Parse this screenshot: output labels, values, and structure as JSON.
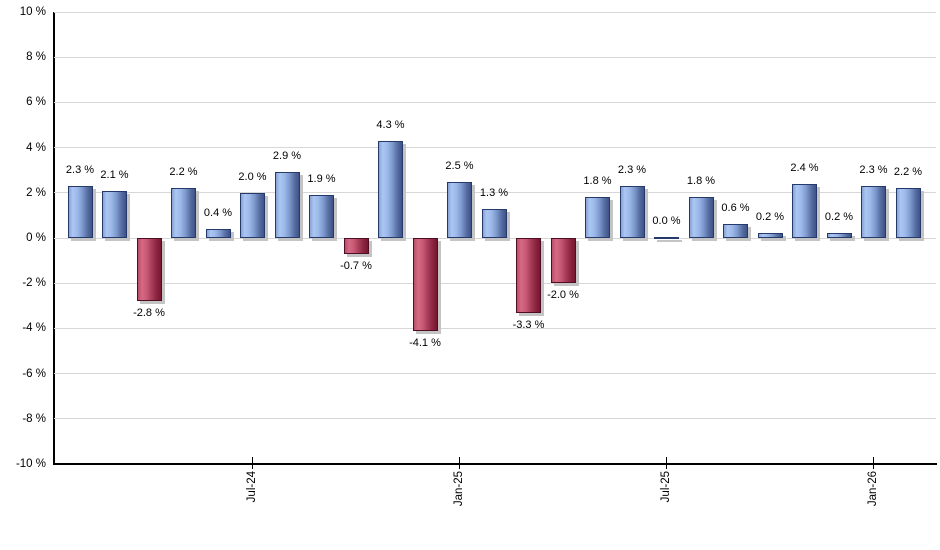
{
  "chart_data": {
    "type": "bar",
    "title": "",
    "xlabel": "",
    "ylabel": "",
    "ylim": [
      -10,
      10
    ],
    "grid": true,
    "legend": null,
    "y_ticks": [
      {
        "label": "10 %",
        "value": 10
      },
      {
        "label": "8 %",
        "value": 8
      },
      {
        "label": "6 %",
        "value": 6
      },
      {
        "label": "4 %",
        "value": 4
      },
      {
        "label": "2 %",
        "value": 2
      },
      {
        "label": "0 %",
        "value": 0
      },
      {
        "label": "-2 %",
        "value": -2
      },
      {
        "label": "-4 %",
        "value": -4
      },
      {
        "label": "-6 %",
        "value": -6
      },
      {
        "label": "-8 %",
        "value": -8
      },
      {
        "label": "-10 %",
        "value": -10
      }
    ],
    "x_ticks": [
      {
        "label": "Jul-24",
        "bar_index": 5
      },
      {
        "label": "Jan-25",
        "bar_index": 11
      },
      {
        "label": "Jul-25",
        "bar_index": 17
      },
      {
        "label": "Jan-26",
        "bar_index": 23
      }
    ],
    "bars": [
      {
        "value": 2.3,
        "label": "2.3 %"
      },
      {
        "value": 2.1,
        "label": "2.1 %"
      },
      {
        "value": -2.8,
        "label": "-2.8 %"
      },
      {
        "value": 2.2,
        "label": "2.2 %"
      },
      {
        "value": 0.4,
        "label": "0.4 %"
      },
      {
        "value": 2.0,
        "label": "2.0 %"
      },
      {
        "value": 2.9,
        "label": "2.9 %"
      },
      {
        "value": 1.9,
        "label": "1.9 %"
      },
      {
        "value": -0.7,
        "label": "-0.7 %"
      },
      {
        "value": 4.3,
        "label": "4.3 %"
      },
      {
        "value": -4.1,
        "label": "-4.1 %"
      },
      {
        "value": 2.5,
        "label": "2.5 %"
      },
      {
        "value": 1.3,
        "label": "1.3 %"
      },
      {
        "value": -3.3,
        "label": "-3.3 %"
      },
      {
        "value": -2.0,
        "label": "-2.0 %"
      },
      {
        "value": 1.8,
        "label": "1.8 %"
      },
      {
        "value": 2.3,
        "label": "2.3 %"
      },
      {
        "value": 0.0,
        "label": "0.0 %"
      },
      {
        "value": 1.8,
        "label": "1.8 %"
      },
      {
        "value": 0.6,
        "label": "0.6 %"
      },
      {
        "value": 0.2,
        "label": "0.2 %"
      },
      {
        "value": 2.4,
        "label": "2.4 %"
      },
      {
        "value": 0.2,
        "label": "0.2 %"
      },
      {
        "value": 2.3,
        "label": "2.3 %"
      },
      {
        "value": 2.2,
        "label": "2.2 %"
      }
    ]
  },
  "colors": {
    "positive_bar": "#9cb9e9",
    "negative_bar": "#c75674",
    "grid_line": "#d7d7d7",
    "axis_line": "#000000",
    "text": "#000000",
    "shadow": "#c4c4c4"
  }
}
